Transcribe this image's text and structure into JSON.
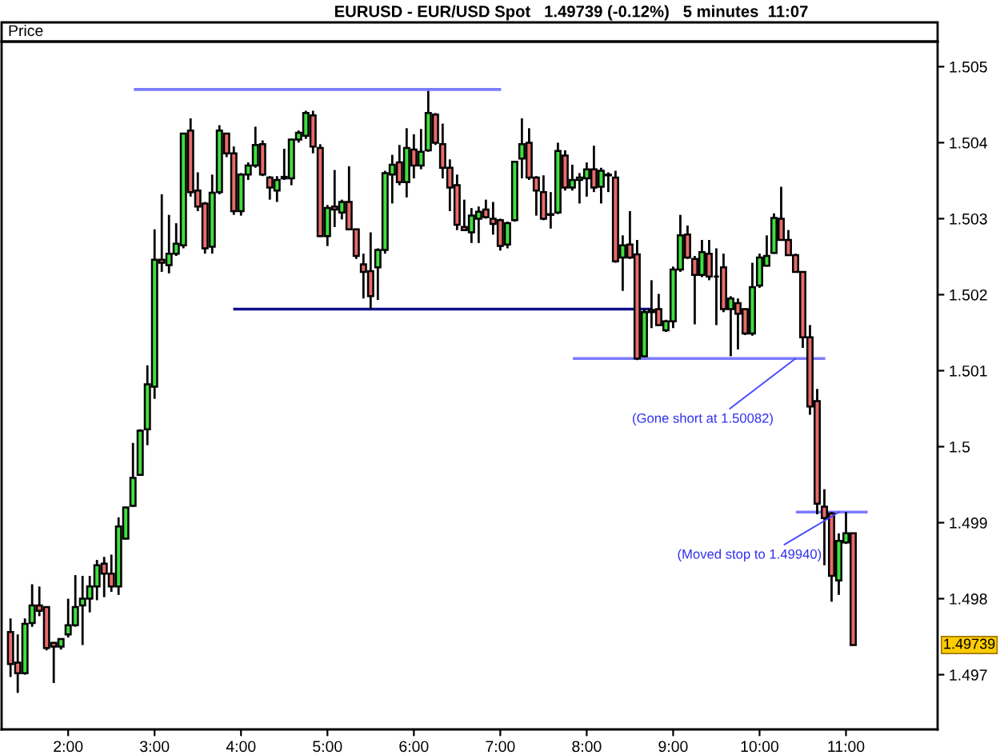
{
  "chart_data": {
    "type": "candlestick",
    "title": "EURUSD - EUR/USD Spot   1.49739 (-0.12%)   5 minutes  11:07",
    "ylabel": "Price",
    "x": [
      1.3333,
      1.4167,
      1.5,
      1.5833,
      1.6667,
      1.75,
      1.8333,
      1.9167,
      2,
      2.0833,
      2.1667,
      2.25,
      2.3333,
      2.4167,
      2.5,
      2.5833,
      2.6667,
      2.75,
      2.8333,
      2.9167,
      3,
      3.0833,
      3.1667,
      3.25,
      3.3333,
      3.4167,
      3.5,
      3.5833,
      3.6667,
      3.75,
      3.8333,
      3.9167,
      4,
      4.0833,
      4.1667,
      4.25,
      4.3333,
      4.4167,
      4.5,
      4.5833,
      4.6667,
      4.75,
      4.8333,
      4.9167,
      5,
      5.0833,
      5.1667,
      5.25,
      5.3333,
      5.4167,
      5.5,
      5.5833,
      5.6667,
      5.75,
      5.8333,
      5.9167,
      6,
      6.0833,
      6.1667,
      6.25,
      6.3333,
      6.4167,
      6.5,
      6.5833,
      6.6667,
      6.75,
      6.8333,
      6.9167,
      7,
      7.0833,
      7.1667,
      7.25,
      7.3333,
      7.4167,
      7.5,
      7.5833,
      7.6667,
      7.75,
      7.8333,
      7.9167,
      8,
      8.0833,
      8.1667,
      8.25,
      8.3333,
      8.4167,
      8.5,
      8.5833,
      8.6667,
      8.75,
      8.8333,
      8.9167,
      9,
      9.0833,
      9.1667,
      9.25,
      9.3333,
      9.4167,
      9.5,
      9.5833,
      9.6667,
      9.75,
      9.8333,
      9.9167,
      10,
      10.0833,
      10.1667,
      10.25,
      10.3333,
      10.4167,
      10.5,
      10.5833,
      10.6667,
      10.75,
      10.8333,
      10.9167,
      11,
      11.0833
    ],
    "ohlc": [
      [
        1.49756,
        1.49774,
        1.49697,
        1.49714
      ],
      [
        1.49716,
        1.49753,
        1.49676,
        1.49702
      ],
      [
        1.49702,
        1.49774,
        1.497,
        1.49767
      ],
      [
        1.49768,
        1.49819,
        1.49763,
        1.49791
      ],
      [
        1.49791,
        1.49816,
        1.49777,
        1.49784
      ],
      [
        1.49789,
        1.4979,
        1.49732,
        1.49735
      ],
      [
        1.49742,
        1.49742,
        1.49689,
        1.49737
      ],
      [
        1.49737,
        1.49747,
        1.49733,
        1.49747
      ],
      [
        1.49753,
        1.498,
        1.49749,
        1.49765
      ],
      [
        1.49765,
        1.49831,
        1.49763,
        1.49789
      ],
      [
        1.49791,
        1.4983,
        1.49739,
        1.498
      ],
      [
        1.498,
        1.4983,
        1.49782,
        1.49816
      ],
      [
        1.49816,
        1.49851,
        1.49798,
        1.49844
      ],
      [
        1.49846,
        1.49855,
        1.49802,
        1.49833
      ],
      [
        1.49833,
        1.49858,
        1.49809,
        1.49816
      ],
      [
        1.49816,
        1.49907,
        1.49805,
        1.49895
      ],
      [
        1.49879,
        1.49921,
        1.49878,
        1.4992
      ],
      [
        1.49922,
        1.50005,
        1.49921,
        1.49959
      ],
      [
        1.49963,
        1.50023,
        1.49962,
        1.50021
      ],
      [
        1.50023,
        1.50107,
        1.50002,
        1.50082
      ],
      [
        1.50079,
        1.50286,
        1.50063,
        1.50246
      ],
      [
        1.50246,
        1.50332,
        1.5023,
        1.50242
      ],
      [
        1.50239,
        1.50305,
        1.50228,
        1.50254
      ],
      [
        1.50254,
        1.50294,
        1.50251,
        1.50267
      ],
      [
        1.50265,
        1.50412,
        1.50261,
        1.50412
      ],
      [
        1.50416,
        1.50432,
        1.50329,
        1.50335
      ],
      [
        1.50337,
        1.50361,
        1.5031,
        1.50316
      ],
      [
        1.5032,
        1.50322,
        1.50254,
        1.50261
      ],
      [
        1.50263,
        1.50358,
        1.50254,
        1.50334
      ],
      [
        1.50335,
        1.50423,
        1.50332,
        1.50416
      ],
      [
        1.50412,
        1.50413,
        1.50381,
        1.50386
      ],
      [
        1.50386,
        1.50395,
        1.50305,
        1.5031
      ],
      [
        1.5031,
        1.5036,
        1.50304,
        1.50358
      ],
      [
        1.50358,
        1.50374,
        1.50351,
        1.5037
      ],
      [
        1.5037,
        1.50421,
        1.50367,
        1.50397
      ],
      [
        1.50398,
        1.50403,
        1.50356,
        1.50358
      ],
      [
        1.50354,
        1.50356,
        1.50325,
        1.50341
      ],
      [
        1.50337,
        1.50356,
        1.50322,
        1.50351
      ],
      [
        1.50353,
        1.50392,
        1.50351,
        1.50355
      ],
      [
        1.50353,
        1.50405,
        1.50344,
        1.50404
      ],
      [
        1.50404,
        1.50416,
        1.504,
        1.50413
      ],
      [
        1.50409,
        1.50442,
        1.50405,
        1.50439
      ],
      [
        1.50436,
        1.50442,
        1.50386,
        1.50395
      ],
      [
        1.50393,
        1.50398,
        1.50276,
        1.50277
      ],
      [
        1.50277,
        1.50318,
        1.50264,
        1.50314
      ],
      [
        1.50316,
        1.50364,
        1.50289,
        1.50312
      ],
      [
        1.50308,
        1.50325,
        1.50299,
        1.50322
      ],
      [
        1.50322,
        1.50369,
        1.50285,
        1.50286
      ],
      [
        1.50286,
        1.50287,
        1.50247,
        1.50251
      ],
      [
        1.5024,
        1.50254,
        1.50195,
        1.5023
      ],
      [
        1.50231,
        1.50282,
        1.50181,
        1.50198
      ],
      [
        1.50236,
        1.50261,
        1.50193,
        1.50259
      ],
      [
        1.50259,
        1.50363,
        1.50254,
        1.5036
      ],
      [
        1.50358,
        1.50384,
        1.5032,
        1.50371
      ],
      [
        1.50374,
        1.50397,
        1.50344,
        1.50348
      ],
      [
        1.50348,
        1.50419,
        1.50328,
        1.50393
      ],
      [
        1.50391,
        1.50411,
        1.50353,
        1.5037
      ],
      [
        1.5037,
        1.50418,
        1.50365,
        1.50388
      ],
      [
        1.5039,
        1.50468,
        1.50388,
        1.50439
      ],
      [
        1.50437,
        1.50439,
        1.50397,
        1.504
      ],
      [
        1.50398,
        1.50425,
        1.50353,
        1.50367
      ],
      [
        1.50367,
        1.50378,
        1.5031,
        1.50341
      ],
      [
        1.50344,
        1.50358,
        1.50285,
        1.50292
      ],
      [
        1.50289,
        1.50325,
        1.50284,
        1.50285
      ],
      [
        1.50282,
        1.50314,
        1.50268,
        1.50304
      ],
      [
        1.503,
        1.50316,
        1.50268,
        1.50309
      ],
      [
        1.50312,
        1.50325,
        1.503,
        1.50302
      ],
      [
        1.503,
        1.50322,
        1.50279,
        1.50293
      ],
      [
        1.50298,
        1.503,
        1.50258,
        1.50264
      ],
      [
        1.50266,
        1.50296,
        1.50261,
        1.50294
      ],
      [
        1.50298,
        1.50376,
        1.50296,
        1.50375
      ],
      [
        1.50379,
        1.50432,
        1.50353,
        1.50398
      ],
      [
        1.504,
        1.50419,
        1.50351,
        1.50354
      ],
      [
        1.50354,
        1.50356,
        1.50304,
        1.50337
      ],
      [
        1.50335,
        1.50357,
        1.50298,
        1.503
      ],
      [
        1.50305,
        1.50335,
        1.50287,
        1.50306
      ],
      [
        1.50308,
        1.504,
        1.50306,
        1.50389
      ],
      [
        1.50383,
        1.5039,
        1.50337,
        1.50341
      ],
      [
        1.50341,
        1.50371,
        1.50337,
        1.50351
      ],
      [
        1.50351,
        1.5036,
        1.5032,
        1.50354
      ],
      [
        1.50353,
        1.50374,
        1.50329,
        1.50365
      ],
      [
        1.50365,
        1.50396,
        1.50335,
        1.50341
      ],
      [
        1.50342,
        1.50367,
        1.5032,
        1.50363
      ],
      [
        1.50357,
        1.50361,
        1.50335,
        1.50358
      ],
      [
        1.50354,
        1.50363,
        1.50242,
        1.50244
      ],
      [
        1.50249,
        1.50278,
        1.50205,
        1.50265
      ],
      [
        1.50266,
        1.5031,
        1.50247,
        1.50249
      ],
      [
        1.50253,
        1.50272,
        1.50114,
        1.50116
      ],
      [
        1.50119,
        1.50181,
        1.50118,
        1.50177
      ],
      [
        1.50177,
        1.50219,
        1.50156,
        1.5018
      ],
      [
        1.50181,
        1.50201,
        1.50159,
        1.5016
      ],
      [
        1.50153,
        1.50167,
        1.50151,
        1.50165
      ],
      [
        1.50165,
        1.50237,
        1.50156,
        1.50233
      ],
      [
        1.50233,
        1.50305,
        1.5023,
        1.50278
      ],
      [
        1.50279,
        1.50291,
        1.50247,
        1.50249
      ],
      [
        1.50247,
        1.50251,
        1.50161,
        1.50226
      ],
      [
        1.50226,
        1.50272,
        1.50223,
        1.50256
      ],
      [
        1.50254,
        1.50272,
        1.50219,
        1.50224
      ],
      [
        1.50224,
        1.50261,
        1.5016,
        1.50224
      ],
      [
        1.50236,
        1.50254,
        1.50177,
        1.50181
      ],
      [
        1.50181,
        1.50198,
        1.50119,
        1.50195
      ],
      [
        1.50189,
        1.50195,
        1.50128,
        1.50175
      ],
      [
        1.50181,
        1.50182,
        1.50147,
        1.50149
      ],
      [
        1.50149,
        1.50242,
        1.50146,
        1.5021
      ],
      [
        1.50212,
        1.50254,
        1.50209,
        1.50249
      ],
      [
        1.50238,
        1.50278,
        1.50237,
        1.50251
      ],
      [
        1.50255,
        1.50307,
        1.50254,
        1.50301
      ],
      [
        1.503,
        1.50342,
        1.50271,
        1.50272
      ],
      [
        1.50272,
        1.50285,
        1.50251,
        1.50252
      ],
      [
        1.50252,
        1.50254,
        1.50229,
        1.5023
      ],
      [
        1.5023,
        1.50231,
        1.5013,
        1.50144
      ],
      [
        1.50144,
        1.5016,
        1.50042,
        1.50053
      ],
      [
        1.5006,
        1.50076,
        1.49911,
        1.49925
      ],
      [
        1.49921,
        1.49944,
        1.49844,
        1.49906
      ],
      [
        1.49912,
        1.49914,
        1.49796,
        1.4983
      ],
      [
        1.49824,
        1.49886,
        1.49805,
        1.49876
      ],
      [
        1.49874,
        1.49914,
        1.49872,
        1.49886
      ],
      [
        1.49886,
        1.49886,
        1.49739,
        1.49739
      ]
    ],
    "colors": [
      "#e76b6b",
      "#e76b6b",
      "#3fdf3f",
      "#3fdf3f",
      "#e76b6b",
      "#e76b6b",
      "#e76b6b",
      "#3fdf3f",
      "#3fdf3f",
      "#3fdf3f",
      "#3fdf3f",
      "#3fdf3f",
      "#3fdf3f",
      "#e76b6b",
      "#e76b6b",
      "#3fdf3f",
      "#3fdf3f",
      "#3fdf3f",
      "#3fdf3f",
      "#3fdf3f",
      "#3fdf3f",
      "#e76b6b",
      "#3fdf3f",
      "#3fdf3f",
      "#3fdf3f",
      "#e76b6b",
      "#e76b6b",
      "#e76b6b",
      "#3fdf3f",
      "#3fdf3f",
      "#e76b6b",
      "#e76b6b",
      "#3fdf3f",
      "#3fdf3f",
      "#3fdf3f",
      "#e76b6b",
      "#e76b6b",
      "#3fdf3f",
      "#3fdf3f",
      "#3fdf3f",
      "#3fdf3f",
      "#3fdf3f",
      "#e76b6b",
      "#e76b6b",
      "#3fdf3f",
      "#e76b6b",
      "#3fdf3f",
      "#e76b6b",
      "#e76b6b",
      "#e76b6b",
      "#e76b6b",
      "#3fdf3f",
      "#3fdf3f",
      "#3fdf3f",
      "#e76b6b",
      "#3fdf3f",
      "#e76b6b",
      "#3fdf3f",
      "#3fdf3f",
      "#e76b6b",
      "#e76b6b",
      "#e76b6b",
      "#e76b6b",
      "#e76b6b",
      "#3fdf3f",
      "#3fdf3f",
      "#e76b6b",
      "#e76b6b",
      "#e76b6b",
      "#3fdf3f",
      "#3fdf3f",
      "#3fdf3f",
      "#e76b6b",
      "#e76b6b",
      "#e76b6b",
      "#3fdf3f",
      "#3fdf3f",
      "#e76b6b",
      "#3fdf3f",
      "#3fdf3f",
      "#3fdf3f",
      "#e76b6b",
      "#3fdf3f",
      "#3fdf3f",
      "#e76b6b",
      "#3fdf3f",
      "#e76b6b",
      "#e76b6b",
      "#3fdf3f",
      "#3fdf3f",
      "#e76b6b",
      "#3fdf3f",
      "#3fdf3f",
      "#3fdf3f",
      "#e76b6b",
      "#e76b6b",
      "#3fdf3f",
      "#e76b6b",
      "#000000",
      "#e76b6b",
      "#3fdf3f",
      "#e76b6b",
      "#e76b6b",
      "#3fdf3f",
      "#3fdf3f",
      "#3fdf3f",
      "#3fdf3f",
      "#e76b6b",
      "#e76b6b",
      "#e76b6b",
      "#e76b6b",
      "#e76b6b",
      "#e76b6b",
      "#e76b6b",
      "#e76b6b",
      "#3fdf3f",
      "#3fdf3f",
      "#e76b6b"
    ],
    "series": [
      {
        "type": "line",
        "x": [
          2.76,
          7.01
        ],
        "values": [
          1.5047,
          1.5047
        ],
        "color": "#7b7bff"
      },
      {
        "type": "line",
        "x": [
          3.91,
          8.75
        ],
        "values": [
          1.50181,
          1.50181
        ],
        "color": "#10108c"
      },
      {
        "type": "line",
        "x": [
          7.84,
          10.76
        ],
        "values": [
          1.50116,
          1.50116
        ],
        "color": "#7b7bff"
      },
      {
        "type": "line",
        "x": [
          10.42,
          11.25
        ],
        "values": [
          1.49914,
          1.49914
        ],
        "color": "#7b7bff"
      }
    ],
    "annotations": [
      {
        "text": "(Gone short at 1.50082)",
        "x": 10.4167,
        "y": 1.50116
      },
      {
        "text": "(Moved stop to 1.49940)",
        "x": 10.92,
        "y": 1.49914
      },
      "1.49739"
    ],
    "xlim": [
      1.23,
      12.06
    ],
    "ylim": [
      1.49628,
      1.50533
    ],
    "xticks": [
      {
        "value": 2,
        "label": "2:00"
      },
      {
        "value": 3,
        "label": "3:00"
      },
      {
        "value": 4,
        "label": "4:00"
      },
      {
        "value": 5,
        "label": "5:00"
      },
      {
        "value": 6,
        "label": "6:00"
      },
      {
        "value": 7,
        "label": "7:00"
      },
      {
        "value": 8,
        "label": "8:00"
      },
      {
        "value": 9,
        "label": "9:00"
      },
      {
        "value": 10,
        "label": "10:00"
      },
      {
        "value": 11,
        "label": "11:00"
      }
    ],
    "yticks": [
      1.497,
      1.498,
      1.499,
      1.5,
      1.501,
      1.502,
      1.503,
      1.504,
      1.505
    ]
  }
}
